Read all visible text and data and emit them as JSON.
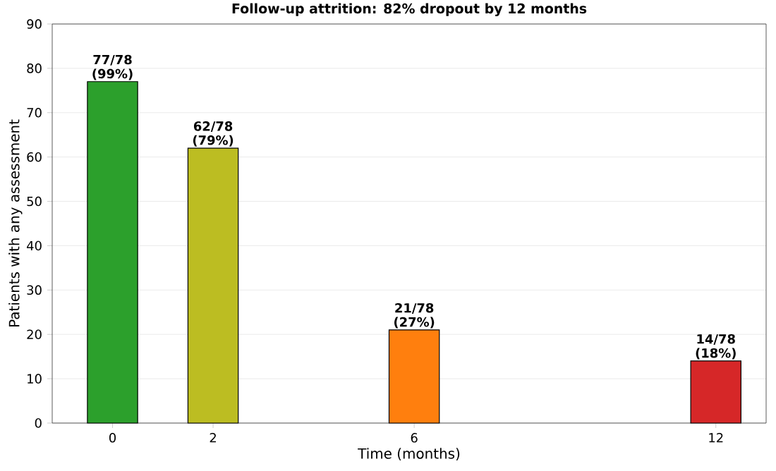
{
  "chart_data": {
    "type": "bar",
    "title": "Follow-up attrition: 82% dropout by 12 months",
    "xlabel": "Time (months)",
    "ylabel": "Patients with any assessment",
    "x": [
      0,
      2,
      6,
      12
    ],
    "values": [
      77,
      62,
      21,
      14
    ],
    "colors": [
      "#2ca02c",
      "#bcbd22",
      "#ff7f0e",
      "#d62728"
    ],
    "value_labels": [
      "77/78 (99%)",
      "62/78 (79%)",
      "21/78 (27%)",
      "14/78 (18%)"
    ],
    "xlim": [
      -1.2,
      13
    ],
    "xticks": [
      0,
      2,
      6,
      12
    ],
    "ylim": [
      0,
      90
    ],
    "yticks": [
      0,
      10,
      20,
      30,
      40,
      50,
      60,
      70,
      80,
      90
    ],
    "grid": "y"
  }
}
